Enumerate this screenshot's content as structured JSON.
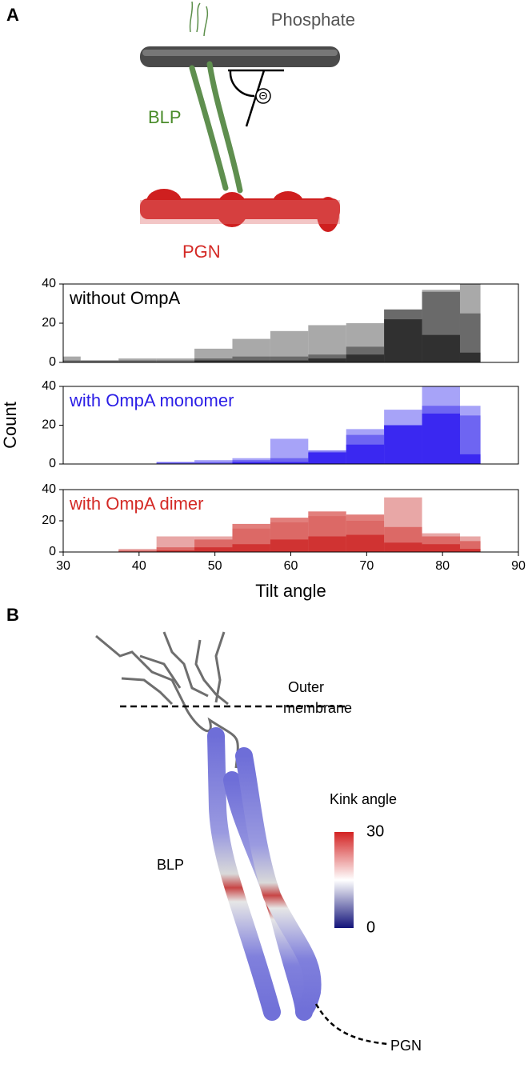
{
  "panel_a": {
    "label": "A",
    "phosphate": "Phosphate",
    "blp": "BLP",
    "pgn": "PGN",
    "theta": "Θ"
  },
  "chart_data": [
    {
      "type": "histogram",
      "title": "without OmpA",
      "title_color": "#000000",
      "bins": [
        30,
        32.3,
        37.3,
        42.3,
        47.3,
        52.3,
        57.3,
        62.3,
        67.3,
        72.3,
        77.3,
        82.3,
        85
      ],
      "series": [
        {
          "color": "#8c8c8c",
          "values": [
            3,
            1,
            2,
            2,
            7,
            12,
            16,
            19,
            20,
            27,
            37,
            40
          ]
        },
        {
          "color": "#555555",
          "values": [
            1,
            1,
            1,
            1,
            2,
            3,
            3,
            4,
            8,
            27,
            36,
            25
          ]
        },
        {
          "color": "#1e1e1e",
          "values": [
            0,
            0,
            0,
            0,
            1,
            1,
            1,
            2,
            4,
            22,
            14,
            5
          ]
        }
      ],
      "xlim": [
        30,
        90
      ],
      "ylim": [
        0,
        40
      ],
      "yticks": [
        0,
        20,
        40
      ]
    },
    {
      "type": "histogram",
      "title": "with OmpA monomer",
      "title_color": "#2b1ee6",
      "ylabel": "Count",
      "bins": [
        30,
        32.3,
        37.3,
        42.3,
        47.3,
        52.3,
        57.3,
        62.3,
        67.3,
        72.3,
        77.3,
        82.3,
        85
      ],
      "series": [
        {
          "color": "#8a84f5",
          "values": [
            0,
            0,
            0,
            1,
            2,
            3,
            13,
            6,
            18,
            28,
            40,
            30
          ]
        },
        {
          "color": "#5b50f0",
          "values": [
            0,
            0,
            0,
            1,
            1,
            2,
            3,
            7,
            15,
            20,
            30,
            25
          ]
        },
        {
          "color": "#2a14f0",
          "values": [
            0,
            0,
            0,
            0,
            0,
            1,
            1,
            6,
            10,
            20,
            26,
            5
          ]
        }
      ],
      "xlim": [
        30,
        90
      ],
      "ylim": [
        0,
        40
      ],
      "yticks": [
        0,
        20,
        40
      ]
    },
    {
      "type": "histogram",
      "title": "with OmpA dimer",
      "title_color": "#d42a26",
      "xlabel": "Tilt angle",
      "bins": [
        30,
        32.3,
        37.3,
        42.3,
        47.3,
        52.3,
        57.3,
        62.3,
        67.3,
        72.3,
        77.3,
        82.3,
        85
      ],
      "series": [
        {
          "color": "#e08a88",
          "values": [
            0,
            0,
            2,
            10,
            10,
            15,
            19,
            23,
            20,
            35,
            12,
            10
          ]
        },
        {
          "color": "#d85450",
          "values": [
            0,
            0,
            1,
            3,
            8,
            18,
            22,
            26,
            24,
            16,
            10,
            7
          ]
        },
        {
          "color": "#cc2222",
          "values": [
            0,
            0,
            0,
            1,
            3,
            5,
            8,
            10,
            11,
            6,
            5,
            2
          ]
        }
      ],
      "xlim": [
        30,
        90
      ],
      "ylim": [
        0,
        40
      ],
      "yticks": [
        0,
        20,
        40
      ],
      "xticks": [
        30,
        40,
        50,
        60,
        70,
        80,
        90
      ]
    }
  ],
  "panel_b": {
    "label": "B",
    "membrane_1": "Outer",
    "membrane_2": "membrane",
    "blp": "BLP",
    "pgn": "PGN",
    "colorbar": {
      "label": "Kink angle",
      "lim": [
        0,
        30
      ],
      "ticks": [
        0,
        30
      ]
    }
  }
}
